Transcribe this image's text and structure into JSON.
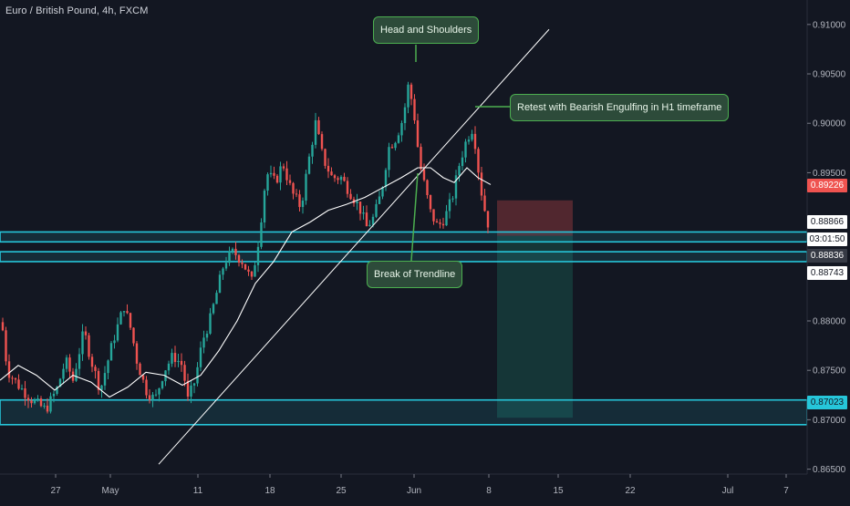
{
  "title": "Euro / British Pound, 4h, FXCM",
  "annotations": {
    "head_shoulders": "Head and Shoulders",
    "retest": "Retest with Bearish Engulfing in H1 timeframe",
    "break_trendline": "Break of Trendline"
  },
  "colors": {
    "background": "#131722",
    "bull": "#26a69a",
    "bear": "#ef5350",
    "zone": "#26c6da",
    "callout_bg": "#2d4b3a",
    "callout_border": "#4caf50",
    "stop_zone": "#5d2a31",
    "target_zone": "#163a3a"
  },
  "price_labels": {
    "p1": "0.89226",
    "p2": "0.88866",
    "countdown": "03:01:50",
    "p3": "0.88836",
    "p4": "0.88743",
    "p5": "0.87023"
  },
  "chart_data": {
    "type": "candlestick",
    "title": "Euro / British Pound, 4h, FXCM",
    "y_ticks": [
      "0.91000",
      "0.90500",
      "0.90000",
      "0.89500",
      "0.89000",
      "0.88500",
      "0.88000",
      "0.87500",
      "0.87000",
      "0.86500"
    ],
    "x_ticks": [
      "27",
      "May",
      "11",
      "18",
      "25",
      "Jun",
      "8",
      "15",
      "22",
      "Jul",
      "7"
    ],
    "ylim": [
      0.8645,
      0.911
    ],
    "candles_anchor_path": [
      [
        0,
        0.8815
      ],
      [
        8,
        0.875
      ],
      [
        20,
        0.8735
      ],
      [
        35,
        0.872
      ],
      [
        50,
        0.871
      ],
      [
        62,
        0.873
      ],
      [
        72,
        0.876
      ],
      [
        80,
        0.874
      ],
      [
        92,
        0.879
      ],
      [
        100,
        0.876
      ],
      [
        110,
        0.873
      ],
      [
        124,
        0.878
      ],
      [
        136,
        0.8815
      ],
      [
        144,
        0.879
      ],
      [
        150,
        0.876
      ],
      [
        160,
        0.873
      ],
      [
        170,
        0.872
      ],
      [
        180,
        0.875
      ],
      [
        190,
        0.8765
      ],
      [
        200,
        0.8755
      ],
      [
        206,
        0.872
      ],
      [
        214,
        0.874
      ],
      [
        222,
        0.878
      ],
      [
        230,
        0.88
      ],
      [
        238,
        0.883
      ],
      [
        246,
        0.886
      ],
      [
        256,
        0.887
      ],
      [
        266,
        0.886
      ],
      [
        276,
        0.884
      ],
      [
        284,
        0.8885
      ],
      [
        292,
        0.895
      ],
      [
        302,
        0.894
      ],
      [
        310,
        0.896
      ],
      [
        320,
        0.893
      ],
      [
        330,
        0.8915
      ],
      [
        338,
        0.896
      ],
      [
        346,
        0.9
      ],
      [
        354,
        0.8965
      ],
      [
        364,
        0.8945
      ],
      [
        374,
        0.8945
      ],
      [
        384,
        0.893
      ],
      [
        394,
        0.8915
      ],
      [
        402,
        0.8895
      ],
      [
        410,
        0.8905
      ],
      [
        418,
        0.893
      ],
      [
        426,
        0.8975
      ],
      [
        434,
        0.8985
      ],
      [
        442,
        0.9005
      ],
      [
        448,
        0.904
      ],
      [
        454,
        0.901
      ],
      [
        460,
        0.896
      ],
      [
        466,
        0.8935
      ],
      [
        472,
        0.891
      ],
      [
        480,
        0.8895
      ],
      [
        488,
        0.8905
      ],
      [
        496,
        0.8925
      ],
      [
        504,
        0.896
      ],
      [
        512,
        0.8985
      ],
      [
        518,
        0.8995
      ],
      [
        522,
        0.8975
      ],
      [
        526,
        0.894
      ],
      [
        532,
        0.891
      ],
      [
        538,
        0.8888
      ]
    ],
    "moving_average": [
      [
        0,
        0.874
      ],
      [
        20,
        0.8755
      ],
      [
        40,
        0.8745
      ],
      [
        60,
        0.873
      ],
      [
        80,
        0.8745
      ],
      [
        100,
        0.8738
      ],
      [
        120,
        0.8723
      ],
      [
        140,
        0.8733
      ],
      [
        160,
        0.8748
      ],
      [
        180,
        0.8745
      ],
      [
        200,
        0.8735
      ],
      [
        220,
        0.8745
      ],
      [
        240,
        0.877
      ],
      [
        260,
        0.88
      ],
      [
        280,
        0.8838
      ],
      [
        300,
        0.886
      ],
      [
        320,
        0.889
      ],
      [
        340,
        0.89
      ],
      [
        360,
        0.8912
      ],
      [
        380,
        0.8918
      ],
      [
        400,
        0.8925
      ],
      [
        420,
        0.8935
      ],
      [
        440,
        0.8945
      ],
      [
        458,
        0.8955
      ],
      [
        472,
        0.8955
      ],
      [
        486,
        0.8945
      ],
      [
        498,
        0.894
      ],
      [
        512,
        0.8955
      ],
      [
        524,
        0.8945
      ],
      [
        538,
        0.8938
      ]
    ],
    "trendline": [
      [
        0.8655,
        174
      ],
      [
        0.9095,
        602
      ]
    ],
    "zones": [
      [
        0.888,
        0.889
      ],
      [
        0.886,
        0.887
      ],
      [
        0.8695,
        0.872
      ]
    ],
    "position": {
      "entry": 0.8886,
      "stop": 0.8922,
      "target": 0.8702
    }
  }
}
